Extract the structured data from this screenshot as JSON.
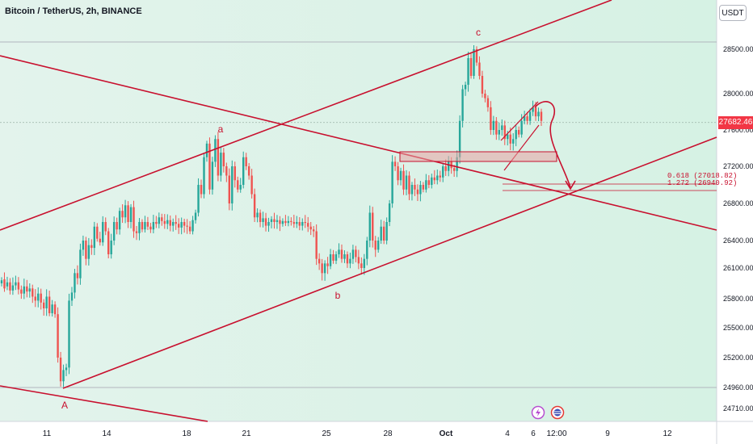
{
  "header": {
    "title": "Bitcoin / TetherUS, 2h, BINANCE",
    "unit_label": "USDT"
  },
  "chart_data": {
    "type": "candlestick",
    "title": "Bitcoin / TetherUS, 2h, BINANCE",
    "currency": "USDT",
    "current_price": "27682.46",
    "price_ticks": [
      "28500.00",
      "28000.00",
      "27600.00",
      "27200.00",
      "26800.00",
      "26400.00",
      "26100.00",
      "25800.00",
      "25500.00",
      "25200.00",
      "24960.00",
      "24710.00"
    ],
    "date_ticks": [
      "11",
      "14",
      "18",
      "21",
      "25",
      "28",
      "Oct",
      "4",
      "6",
      "12:00",
      "9",
      "12"
    ],
    "wave_labels": [
      {
        "label": "A",
        "price": 24930
      },
      {
        "label": "a",
        "price": 27650
      },
      {
        "label": "b",
        "price": 26030
      },
      {
        "label": "c",
        "price": 28590
      }
    ],
    "fib_levels": [
      {
        "label": "0.618 (27018.82)",
        "price": 27018.82
      },
      {
        "label": "1.272 (26940.92)",
        "price": 26940.92
      }
    ],
    "price_path": [
      [
        25950,
        25980
      ],
      [
        25990,
        25900
      ],
      [
        25920,
        25960
      ],
      [
        25960,
        25880
      ],
      [
        25880,
        25930
      ],
      [
        25930,
        25960
      ],
      [
        25960,
        25890
      ],
      [
        25890,
        25850
      ],
      [
        25850,
        25920
      ],
      [
        25920,
        25870
      ],
      [
        25870,
        25900
      ],
      [
        25900,
        25820
      ],
      [
        25820,
        25780
      ],
      [
        25780,
        25850
      ],
      [
        25850,
        25760
      ],
      [
        25760,
        25700
      ],
      [
        25700,
        25820
      ],
      [
        25820,
        25650
      ],
      [
        25650,
        25740
      ],
      [
        25740,
        25640
      ],
      [
        25640,
        25200
      ],
      [
        25200,
        25010
      ],
      [
        25010,
        25100
      ],
      [
        25100,
        25120
      ],
      [
        25120,
        25780
      ],
      [
        25780,
        25860
      ],
      [
        25860,
        26050
      ],
      [
        26050,
        26000
      ],
      [
        26000,
        26300
      ],
      [
        26300,
        26400
      ],
      [
        26400,
        26200
      ],
      [
        26200,
        26350
      ],
      [
        26350,
        26320
      ],
      [
        26320,
        26550
      ],
      [
        26550,
        26420
      ],
      [
        26420,
        26380
      ],
      [
        26380,
        26600
      ],
      [
        26600,
        26500
      ],
      [
        26500,
        26250
      ],
      [
        26250,
        26400
      ],
      [
        26400,
        26600
      ],
      [
        26600,
        26520
      ],
      [
        26520,
        26720
      ],
      [
        26720,
        26650
      ],
      [
        26650,
        26780
      ],
      [
        26780,
        26600
      ],
      [
        26600,
        26760
      ],
      [
        26760,
        26500
      ],
      [
        26500,
        26480
      ],
      [
        26480,
        26600
      ],
      [
        26600,
        26520
      ],
      [
        26520,
        26600
      ],
      [
        26600,
        26550
      ],
      [
        26550,
        26520
      ],
      [
        26520,
        26600
      ],
      [
        26600,
        26580
      ],
      [
        26580,
        26650
      ],
      [
        26650,
        26610
      ],
      [
        26610,
        26580
      ],
      [
        26580,
        26620
      ],
      [
        26620,
        26560
      ],
      [
        26560,
        26600
      ],
      [
        26600,
        26580
      ],
      [
        26580,
        26540
      ],
      [
        26540,
        26600
      ],
      [
        26600,
        26560
      ],
      [
        26560,
        26550
      ],
      [
        26550,
        26500
      ],
      [
        26500,
        26620
      ],
      [
        26620,
        26700
      ],
      [
        26700,
        27000
      ],
      [
        27000,
        26900
      ],
      [
        26900,
        27300
      ],
      [
        27300,
        27450
      ],
      [
        27450,
        26950
      ],
      [
        26950,
        27250
      ],
      [
        27250,
        27500
      ],
      [
        27500,
        27100
      ],
      [
        27100,
        27350
      ],
      [
        27350,
        27200
      ],
      [
        27200,
        27100
      ],
      [
        27100,
        26800
      ],
      [
        26800,
        27200
      ],
      [
        27200,
        27050
      ],
      [
        27050,
        26950
      ],
      [
        26950,
        27000
      ],
      [
        27000,
        27300
      ],
      [
        27300,
        27200
      ],
      [
        27200,
        27100
      ],
      [
        27100,
        26900
      ],
      [
        26900,
        26650
      ],
      [
        26650,
        26700
      ],
      [
        26700,
        26600
      ],
      [
        26600,
        26640
      ],
      [
        26640,
        26560
      ],
      [
        26560,
        26600
      ],
      [
        26600,
        26630
      ],
      [
        26630,
        26600
      ],
      [
        26600,
        26620
      ],
      [
        26620,
        26580
      ],
      [
        26580,
        26610
      ],
      [
        26610,
        26590
      ],
      [
        26590,
        26610
      ],
      [
        26610,
        26600
      ],
      [
        26600,
        26580
      ],
      [
        26580,
        26600
      ],
      [
        26600,
        26560
      ],
      [
        26560,
        26600
      ],
      [
        26600,
        26590
      ],
      [
        26590,
        26550
      ],
      [
        26550,
        26520
      ],
      [
        26520,
        26500
      ],
      [
        26500,
        26200
      ],
      [
        26200,
        26150
      ],
      [
        26150,
        26050
      ],
      [
        26050,
        26150
      ],
      [
        26150,
        26120
      ],
      [
        26120,
        26250
      ],
      [
        26250,
        26180
      ],
      [
        26180,
        26250
      ],
      [
        26250,
        26300
      ],
      [
        26300,
        26200
      ],
      [
        26200,
        26250
      ],
      [
        26250,
        26150
      ],
      [
        26150,
        26200
      ],
      [
        26200,
        26300
      ],
      [
        26300,
        26220
      ],
      [
        26220,
        26150
      ],
      [
        26150,
        26100
      ],
      [
        26100,
        26200
      ],
      [
        26200,
        26400
      ],
      [
        26400,
        26700
      ],
      [
        26700,
        26400
      ],
      [
        26400,
        26300
      ],
      [
        26300,
        26400
      ],
      [
        26400,
        26550
      ],
      [
        26550,
        26400
      ],
      [
        26400,
        26600
      ],
      [
        26600,
        26800
      ],
      [
        26800,
        27250
      ],
      [
        27250,
        27200
      ],
      [
        27200,
        27050
      ],
      [
        27050,
        27150
      ],
      [
        27150,
        26950
      ],
      [
        26950,
        27100
      ],
      [
        27100,
        26900
      ],
      [
        26900,
        27000
      ],
      [
        27000,
        26950
      ],
      [
        26950,
        26900
      ],
      [
        26900,
        27000
      ],
      [
        27000,
        26950
      ],
      [
        26950,
        27050
      ],
      [
        27050,
        27000
      ],
      [
        27000,
        27080
      ],
      [
        27080,
        27050
      ],
      [
        27050,
        27100
      ],
      [
        27100,
        27080
      ],
      [
        27080,
        27200
      ],
      [
        27200,
        27150
      ],
      [
        27150,
        27250
      ],
      [
        27250,
        27180
      ],
      [
        27180,
        27150
      ],
      [
        27150,
        27300
      ],
      [
        27300,
        27700
      ],
      [
        27700,
        28050
      ],
      [
        28050,
        28100
      ],
      [
        28100,
        28400
      ],
      [
        28400,
        28200
      ],
      [
        28200,
        28500
      ],
      [
        28500,
        28350
      ],
      [
        28350,
        28200
      ],
      [
        28200,
        28000
      ],
      [
        28000,
        27950
      ],
      [
        27950,
        27850
      ],
      [
        27850,
        27600
      ],
      [
        27600,
        27700
      ],
      [
        27700,
        27550
      ],
      [
        27550,
        27600
      ],
      [
        27600,
        27650
      ],
      [
        27650,
        27500
      ],
      [
        27500,
        27550
      ],
      [
        27550,
        27450
      ],
      [
        27450,
        27500
      ],
      [
        27500,
        27600
      ],
      [
        27600,
        27550
      ],
      [
        27550,
        27700
      ],
      [
        27700,
        27750
      ],
      [
        27750,
        27700
      ],
      [
        27700,
        27800
      ],
      [
        27800,
        27850
      ],
      [
        27850,
        27750
      ],
      [
        27750,
        27800
      ],
      [
        27800,
        27700
      ]
    ]
  }
}
